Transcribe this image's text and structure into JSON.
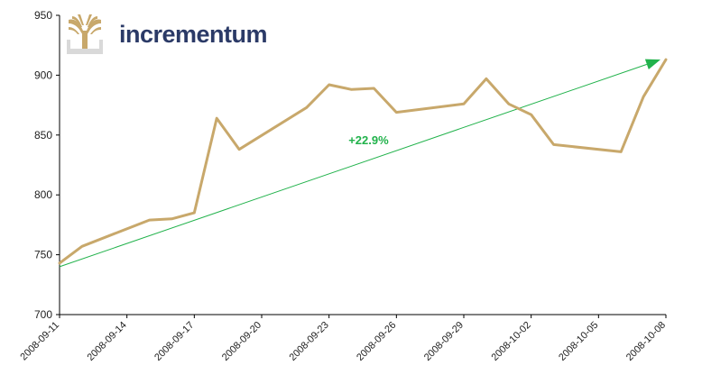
{
  "brand": {
    "name": "incrementum"
  },
  "colors": {
    "line": "#c8a86b",
    "trend": "#21b24b",
    "brand_text": "#2b3a67",
    "axis": "#000000"
  },
  "chart_data": {
    "type": "line",
    "title": "",
    "xlabel": "",
    "ylabel": "",
    "ylim": [
      700,
      950
    ],
    "yticks": [
      700,
      750,
      800,
      850,
      900,
      950
    ],
    "xticks": [
      "2008-09-11",
      "2008-09-14",
      "2008-09-17",
      "2008-09-20",
      "2008-09-23",
      "2008-09-26",
      "2008-09-29",
      "2008-10-02",
      "2008-10-05",
      "2008-10-08"
    ],
    "x": [
      "2008-09-11",
      "2008-09-12",
      "2008-09-15",
      "2008-09-16",
      "2008-09-17",
      "2008-09-18",
      "2008-09-19",
      "2008-09-22",
      "2008-09-23",
      "2008-09-24",
      "2008-09-25",
      "2008-09-26",
      "2008-09-29",
      "2008-09-30",
      "2008-10-01",
      "2008-10-02",
      "2008-10-03",
      "2008-10-06",
      "2008-10-07",
      "2008-10-08"
    ],
    "series": [
      {
        "values": [
          743,
          757,
          779,
          780,
          785,
          864,
          838,
          873,
          892,
          888,
          889,
          869,
          876,
          897,
          876,
          867,
          842,
          836,
          882,
          913
        ]
      }
    ],
    "trend": {
      "from": [
        "2008-09-11",
        740
      ],
      "to": [
        "2008-10-08",
        913
      ]
    },
    "annotation": "+22.9%",
    "annotation_at": [
      "2008-09-25",
      850
    ]
  }
}
